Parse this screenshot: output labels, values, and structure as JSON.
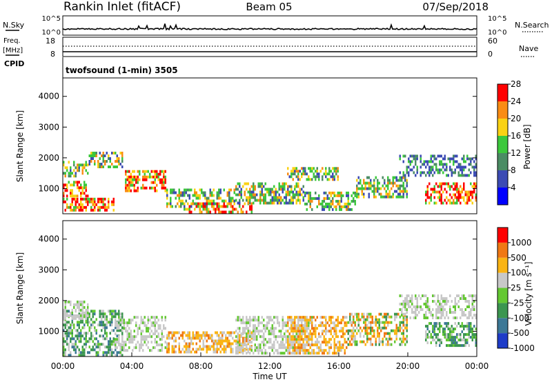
{
  "header": {
    "station": "Rankin Inlet (fitACF)",
    "beam": "Beam 05",
    "date": "07/Sep/2018"
  },
  "time_axis": {
    "ticks": [
      "00:00",
      "04:00",
      "08:00",
      "12:00",
      "16:00",
      "20:00",
      "00:00"
    ],
    "label": "Time UT",
    "range_hours": [
      0,
      24
    ]
  },
  "noise_panel": {
    "left_label": "N.Sky",
    "right_label": "N.Search",
    "left_ticks": [
      "10^5",
      "10^0"
    ],
    "right_ticks": [
      "10^5",
      "10^0"
    ]
  },
  "freq_panel": {
    "left_label_1": "Freq.",
    "left_label_2": "[MHz]",
    "cpid_label": "CPID",
    "right_label": "Nave",
    "left_ticks": [
      "18",
      "8"
    ],
    "right_ticks": [
      "60",
      "0"
    ]
  },
  "cpid_text": "twofsound (1-min) 3505",
  "chart_data": [
    {
      "type": "heatmap",
      "quantity": "Power",
      "ylabel": "Slant Range [km]",
      "ylim": [
        180,
        4600
      ],
      "yticks": [
        1000,
        2000,
        3000,
        4000
      ],
      "colorbar": {
        "label": "Power [dB]",
        "ticks": [
          "4",
          "8",
          "12",
          "16",
          "20",
          "24",
          "28"
        ],
        "colors": [
          "#0000ff",
          "#3c4bb4",
          "#4b8c64",
          "#3cc83c",
          "#fad214",
          "#fa8c14",
          "#ff0000"
        ],
        "range": [
          0,
          30
        ]
      },
      "echo_bands": [
        {
          "t": [
            0.0,
            3.0
          ],
          "r": [
            260,
            700
          ],
          "level": "high"
        },
        {
          "t": [
            0.0,
            1.5
          ],
          "r": [
            800,
            1250
          ],
          "level": "high"
        },
        {
          "t": [
            0.0,
            1.5
          ],
          "r": [
            1450,
            1900
          ],
          "level": "medium"
        },
        {
          "t": [
            1.5,
            3.5
          ],
          "r": [
            1700,
            2200
          ],
          "level": "medium"
        },
        {
          "t": [
            3.6,
            6.0
          ],
          "r": [
            900,
            1600
          ],
          "level": "high"
        },
        {
          "t": [
            6.0,
            10.0
          ],
          "r": [
            400,
            1000
          ],
          "level": "medium"
        },
        {
          "t": [
            7.0,
            11.0
          ],
          "r": [
            200,
            550
          ],
          "level": "high"
        },
        {
          "t": [
            10.0,
            14.0
          ],
          "r": [
            500,
            1200
          ],
          "level": "medium"
        },
        {
          "t": [
            13.0,
            16.0
          ],
          "r": [
            1300,
            1700
          ],
          "level": "medium"
        },
        {
          "t": [
            14.0,
            17.0
          ],
          "r": [
            300,
            900
          ],
          "level": "medium"
        },
        {
          "t": [
            17.0,
            20.0
          ],
          "r": [
            700,
            1400
          ],
          "level": "medium"
        },
        {
          "t": [
            19.5,
            24.0
          ],
          "r": [
            1400,
            2100
          ],
          "level": "low"
        },
        {
          "t": [
            21.0,
            24.0
          ],
          "r": [
            500,
            1200
          ],
          "level": "high"
        }
      ]
    },
    {
      "type": "heatmap",
      "quantity": "Velocity",
      "ylabel": "Slant Range [km]",
      "ylim": [
        180,
        4600
      ],
      "yticks": [
        1000,
        2000,
        3000,
        4000
      ],
      "colorbar": {
        "label": "Velocity [m s⁻¹]",
        "ticks": [
          "1000",
          "500",
          "100",
          "25",
          "-25",
          "-100",
          "-500",
          "-1000"
        ],
        "colors": [
          "#1e3cc8",
          "#3c7896",
          "#3c9650",
          "#64c832",
          "#c8c8c8",
          "#fab414",
          "#f07814",
          "#ff0000"
        ]
      },
      "echo_bands": [
        {
          "t": [
            0.0,
            3.5
          ],
          "r": [
            260,
            1700
          ],
          "level": "toward"
        },
        {
          "t": [
            0.0,
            1.5
          ],
          "r": [
            1400,
            2000
          ],
          "level": "ground"
        },
        {
          "t": [
            3.0,
            6.0
          ],
          "r": [
            400,
            1500
          ],
          "level": "ground"
        },
        {
          "t": [
            6.0,
            11.0
          ],
          "r": [
            300,
            1000
          ],
          "level": "away"
        },
        {
          "t": [
            10.0,
            14.5
          ],
          "r": [
            300,
            1500
          ],
          "level": "ground"
        },
        {
          "t": [
            13.0,
            16.5
          ],
          "r": [
            300,
            1500
          ],
          "level": "away"
        },
        {
          "t": [
            16.5,
            20.0
          ],
          "r": [
            600,
            1600
          ],
          "level": "mixed"
        },
        {
          "t": [
            19.5,
            24.0
          ],
          "r": [
            1400,
            2200
          ],
          "level": "ground"
        },
        {
          "t": [
            21.0,
            24.0
          ],
          "r": [
            500,
            1300
          ],
          "level": "toward"
        }
      ]
    }
  ]
}
